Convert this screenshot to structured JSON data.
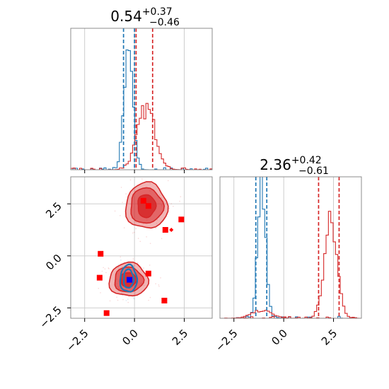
{
  "colors": {
    "sample_a": "#1f77b4",
    "sample_b": "#d62728",
    "marker_red": "#ff0000",
    "marker_blue": "#0000ff",
    "grid": "#c8c8c8",
    "frame": "#808080"
  },
  "chart_data": [
    {
      "type": "histogram",
      "panel": "marginal-param-1",
      "title_value": "0.54",
      "title_upper": "+0.37",
      "title_lower": "−0.46",
      "xlim": [
        -3.2,
        3.9
      ],
      "grid": true,
      "quantile_lines": [
        {
          "series": "sample_a",
          "x": [
            -0.55,
            0.0
          ]
        },
        {
          "series": "sample_b",
          "x": [
            0.08,
            0.91
          ]
        }
      ],
      "series": [
        {
          "series": "sample_a",
          "center": -0.3,
          "spread": 0.22,
          "relative_peak": 1.0
        },
        {
          "series": "sample_b",
          "center": 0.6,
          "spread": 0.45,
          "relative_peak": 0.47
        }
      ]
    },
    {
      "type": "histogram",
      "panel": "marginal-param-2",
      "title_value": "2.36",
      "title_upper": "+0.42",
      "title_lower": "−0.61",
      "xlim": [
        -3.2,
        3.9
      ],
      "xticks": [
        "−2.5",
        "0.0",
        "2.5"
      ],
      "xtick_values": [
        -2.5,
        0.0,
        2.5
      ],
      "grid": true,
      "quantile_lines": [
        {
          "series": "sample_a",
          "x": [
            -1.4,
            -0.85
          ]
        },
        {
          "series": "sample_b",
          "x": [
            1.75,
            2.78
          ]
        }
      ],
      "series": [
        {
          "series": "sample_a",
          "center": -1.1,
          "spread": 0.2,
          "relative_peak": 1.0
        },
        {
          "series": "sample_b",
          "center": 2.36,
          "spread": 0.32,
          "relative_peak": 0.73
        },
        {
          "series": "sample_b",
          "center": -1.1,
          "spread": 0.5,
          "relative_peak": 0.06
        }
      ]
    },
    {
      "type": "scatter",
      "panel": "joint-param-1-param-2",
      "xlim": [
        -3.2,
        3.9
      ],
      "ylim": [
        -3.0,
        3.8
      ],
      "xticks": [
        "−2.5",
        "0.0",
        "2.5"
      ],
      "xtick_values": [
        -2.5,
        0.0,
        2.5
      ],
      "yticks": [
        "−2.5",
        "0.0",
        "2.5"
      ],
      "ytick_values": [
        -2.5,
        0.0,
        2.5
      ],
      "grid": true,
      "contours": [
        {
          "series": "sample_b",
          "cx": 0.6,
          "cy": 2.4,
          "rx": [
            1.05,
            0.82,
            0.45
          ],
          "ry": [
            1.1,
            0.85,
            0.55
          ]
        },
        {
          "series": "sample_b",
          "cx": -0.3,
          "cy": -1.15,
          "rx": [
            0.98,
            0.72,
            0.4
          ],
          "ry": [
            0.8,
            0.6,
            0.35
          ]
        },
        {
          "series": "sample_a",
          "cx": -0.3,
          "cy": -1.1,
          "rx": [
            0.42,
            0.25
          ],
          "ry": [
            0.65,
            0.45
          ]
        }
      ],
      "points": [
        {
          "x": -1.7,
          "y": 0.1,
          "color": "marker_red"
        },
        {
          "x": -1.75,
          "y": -1.05,
          "color": "marker_red"
        },
        {
          "x": -1.4,
          "y": -2.75,
          "color": "marker_red"
        },
        {
          "x": 0.45,
          "y": 2.65,
          "color": "marker_red"
        },
        {
          "x": 0.7,
          "y": 2.4,
          "color": "marker_red"
        },
        {
          "x": 1.55,
          "y": 1.25,
          "color": "marker_red"
        },
        {
          "x": 2.35,
          "y": 1.75,
          "color": "marker_red"
        },
        {
          "x": 0.7,
          "y": -0.85,
          "color": "marker_red"
        },
        {
          "x": 1.5,
          "y": -2.15,
          "color": "marker_red"
        },
        {
          "x": -0.25,
          "y": -1.15,
          "color": "marker_blue"
        }
      ],
      "diamond": {
        "x": 1.85,
        "y": 1.25,
        "color": "marker_red"
      }
    }
  ]
}
